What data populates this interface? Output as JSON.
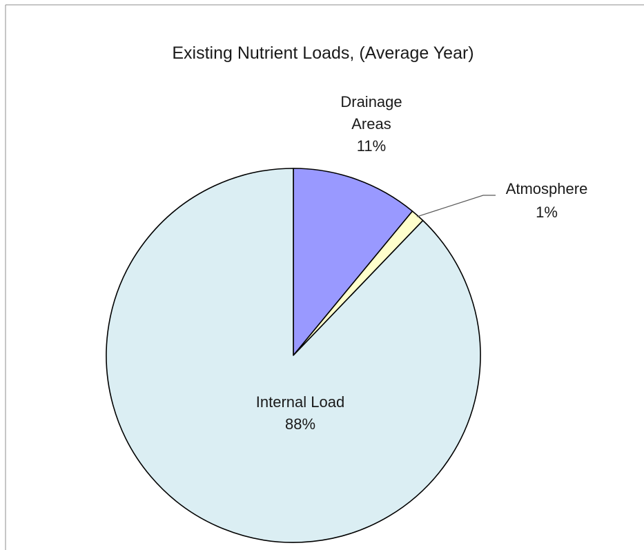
{
  "chart_data": {
    "type": "pie",
    "title": "Existing Nutrient Loads, (Average Year)",
    "start_angle_deg": 0,
    "direction": "clockwise",
    "slices": [
      {
        "label": "Drainage Areas",
        "label_lines": [
          "Drainage",
          "Areas"
        ],
        "pct_label": "11%",
        "value": 11,
        "color": "#9999ff"
      },
      {
        "label": "Atmosphere",
        "label_lines": [
          "Atmosphere"
        ],
        "pct_label": "1%",
        "value": 1.2,
        "color": "#ffffcc"
      },
      {
        "label": "Internal Load",
        "label_lines": [
          "Internal Load"
        ],
        "pct_label": "88%",
        "value": 88,
        "color": "#dbeef3"
      }
    ],
    "slice_border_color": "#000000",
    "leader_line_color": "#595959",
    "legend": "none"
  }
}
